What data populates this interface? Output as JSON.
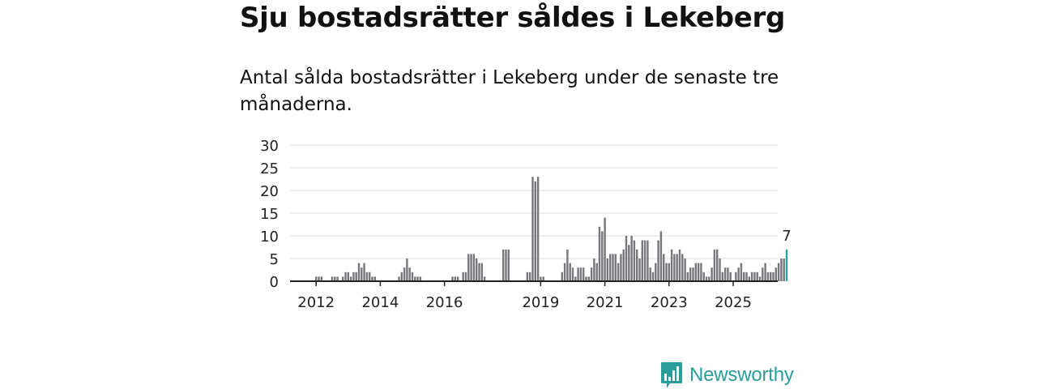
{
  "header": {
    "title": "Sju bostadsrätter såldes i Lekeberg",
    "subtitle": "Antal sålda bostadsrätter i Lekeberg under de senaste tre månaderna."
  },
  "brand": {
    "name": "Newsworthy",
    "color": "#2a9d9a",
    "icon": "bar-chart-speech-bubble-icon"
  },
  "chart_data": {
    "type": "bar",
    "title": "Sju bostadsrätter såldes i Lekeberg",
    "subtitle": "Antal sålda bostadsrätter i Lekeberg under de senaste tre månaderna.",
    "xlabel": "",
    "ylabel": "",
    "ylim": [
      0,
      30
    ],
    "yticks": [
      0,
      5,
      10,
      15,
      20,
      25,
      30
    ],
    "x_tick_labels": [
      "2012",
      "2014",
      "2016",
      "2019",
      "2021",
      "2023",
      "2025"
    ],
    "x_tick_months": [
      4,
      28,
      52,
      88,
      112,
      136,
      160
    ],
    "grid": true,
    "bar_color": "#77767b",
    "highlight_color": "#2aa39f",
    "highlight_label": "7",
    "start": "2011-09",
    "unit": "month",
    "values": [
      0,
      0,
      0,
      0,
      1,
      1,
      1,
      0,
      0,
      0,
      1,
      1,
      1,
      0,
      1,
      2,
      2,
      1,
      2,
      2,
      4,
      3,
      4,
      2,
      2,
      1,
      1,
      0,
      0,
      0,
      0,
      0,
      0,
      0,
      0,
      1,
      2,
      3,
      5,
      3,
      2,
      1,
      1,
      1,
      0,
      0,
      0,
      0,
      0,
      0,
      0,
      0,
      0,
      0,
      0,
      1,
      1,
      1,
      0,
      2,
      2,
      6,
      6,
      6,
      5,
      4,
      4,
      1,
      0,
      0,
      0,
      0,
      0,
      0,
      7,
      7,
      7,
      0,
      0,
      0,
      0,
      0,
      0,
      2,
      2,
      23,
      22,
      23,
      1,
      1,
      0,
      0,
      0,
      0,
      0,
      0,
      2,
      4,
      7,
      4,
      3,
      1,
      3,
      3,
      3,
      1,
      1,
      3,
      5,
      4,
      12,
      11,
      14,
      5,
      6,
      6,
      6,
      4,
      6,
      7,
      10,
      8,
      10,
      9,
      7,
      5,
      9,
      9,
      9,
      3,
      2,
      4,
      9,
      11,
      6,
      4,
      4,
      7,
      6,
      6,
      7,
      6,
      5,
      2,
      3,
      3,
      4,
      4,
      4,
      2,
      1,
      1,
      3,
      7,
      7,
      5,
      2,
      3,
      3,
      2,
      0,
      2,
      3,
      4,
      2,
      2,
      1,
      2,
      2,
      2,
      1,
      3,
      4,
      2,
      2,
      2,
      3,
      4,
      5,
      5,
      7
    ]
  }
}
